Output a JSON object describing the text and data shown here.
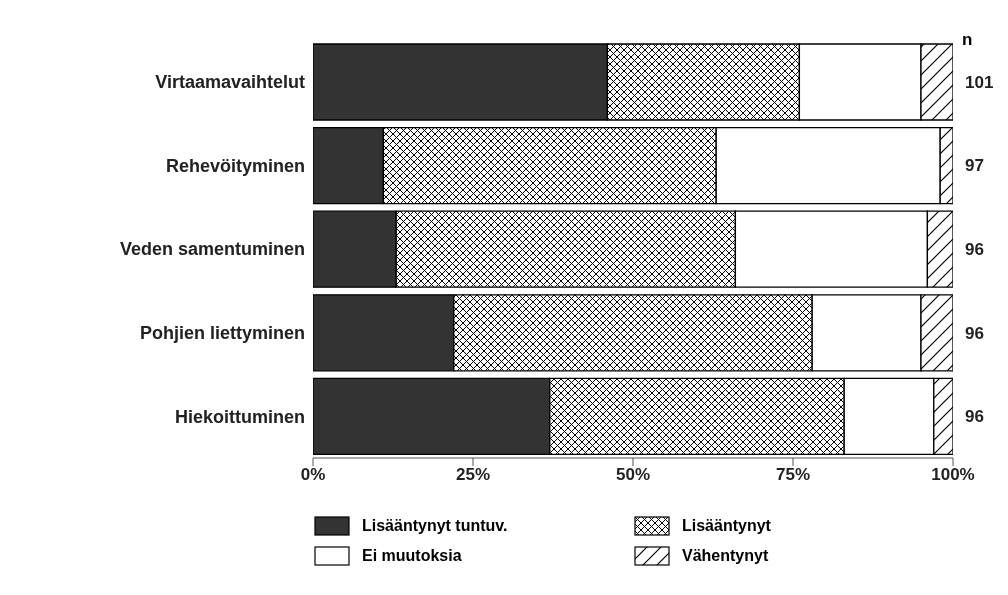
{
  "chart_data": {
    "type": "bar",
    "orientation": "horizontal",
    "stacked": true,
    "categories": [
      "Virtaamavaihtelut",
      "Rehevöityminen",
      "Veden samentuminen",
      "Pohjien liettyminen",
      "Hiekoittuminen"
    ],
    "series": [
      {
        "name": "Lisääntynyt tuntuv.",
        "color": "#333333",
        "values": [
          46,
          11,
          13,
          22,
          37
        ]
      },
      {
        "name": "Lisääntynyt",
        "color": "#000000",
        "values": [
          30,
          52,
          53,
          56,
          46
        ]
      },
      {
        "name": "Ei muutoksia",
        "color": "#ffffff",
        "values": [
          19,
          35,
          30,
          17,
          14
        ]
      },
      {
        "name": "Vähentynyt",
        "color": "#000000",
        "values": [
          5,
          2,
          4,
          5,
          3
        ]
      }
    ],
    "xlim": [
      0,
      100
    ],
    "xticks": [
      {
        "value": 0,
        "label": "0%"
      },
      {
        "value": 25,
        "label": "25%"
      },
      {
        "value": 50,
        "label": "50%"
      },
      {
        "value": 75,
        "label": "75%"
      },
      {
        "value": 100,
        "label": "100%"
      }
    ],
    "grid": false,
    "legend": "bottom",
    "annotations": [
      "n",
      "101",
      "97",
      "96",
      "96",
      "96"
    ]
  }
}
